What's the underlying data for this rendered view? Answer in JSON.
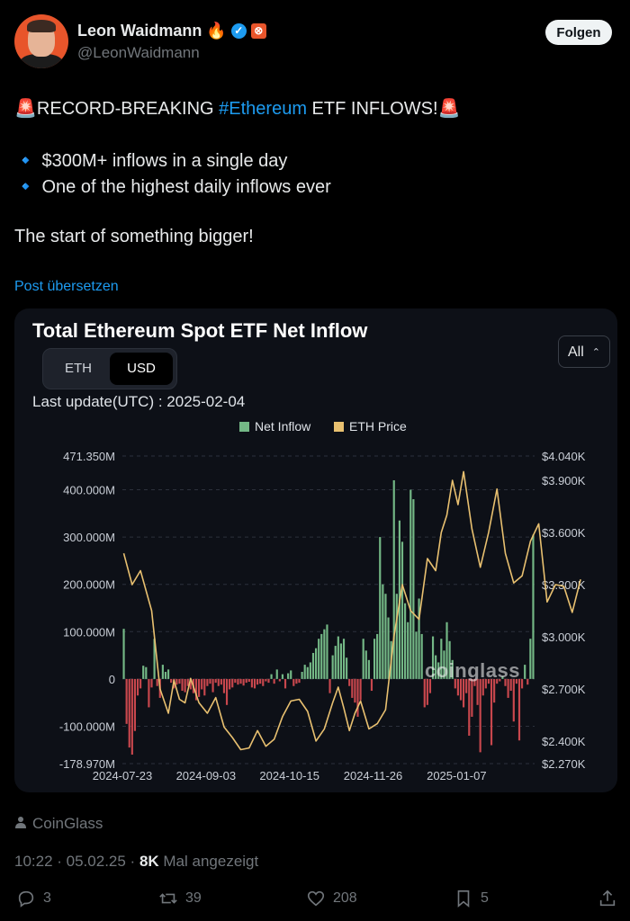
{
  "author": {
    "name": "Leon Waidmann",
    "name_emoji": "🔥",
    "handle": "@LeonWaidmann"
  },
  "follow_label": "Folgen",
  "tweet": {
    "line1_pre": "RECORD-BREAKING ",
    "line1_tag": "#Ethereum",
    "line1_post": " ETF INFLOWS!",
    "siren": "🚨",
    "bullet": "🔹",
    "bullet1": "$300M+ inflows in a single day",
    "bullet2": "One of the highest daily inflows ever",
    "line4": "The start of something bigger!"
  },
  "translate_label": "Post übersetzen",
  "card": {
    "title": "Total Ethereum Spot ETF Net Inflow",
    "toggle": [
      "ETH",
      "USD"
    ],
    "selected_toggle": "USD",
    "range_select": "All",
    "last_update": "Last update(UTC) : 2025-02-04",
    "watermark": "coinglass"
  },
  "chart_data": {
    "type": "bar",
    "title": "Total Ethereum Spot ETF Net Inflow",
    "legend": [
      "Net Inflow",
      "ETH Price"
    ],
    "legend_position": "top-center",
    "colors": {
      "positive": "#74b886",
      "negative": "#c8474d",
      "price": "#e8c070",
      "grid": "#2c313c"
    },
    "x_ticks": [
      "2024-07-23",
      "2024-09-03",
      "2024-10-15",
      "2024-11-26",
      "2025-01-07"
    ],
    "y_left_ticks": [
      "471.350M",
      "400.000M",
      "300.000M",
      "200.000M",
      "100.000M",
      "0",
      "-100.000M",
      "-178.970M"
    ],
    "y_left_range": [
      -178.97,
      471.35
    ],
    "y_right_ticks": [
      "$4.040K",
      "$3.900K",
      "$3.600K",
      "$3.300K",
      "$3.000K",
      "$2.700K",
      "$2.400K",
      "$2.270K"
    ],
    "y_right_range": [
      2270,
      4040
    ],
    "grid": true,
    "series": [
      {
        "name": "Net Inflow",
        "unit": "USD millions",
        "values": [
          106,
          -95,
          -145,
          -160,
          -110,
          -35,
          -20,
          28,
          25,
          -60,
          -18,
          85,
          -15,
          -40,
          30,
          15,
          20,
          -8,
          -20,
          -12,
          -10,
          -25,
          -28,
          -15,
          -22,
          -30,
          -45,
          -38,
          -22,
          -35,
          -15,
          -10,
          -28,
          -8,
          -15,
          -12,
          -30,
          -55,
          -22,
          -18,
          -8,
          -12,
          -10,
          -14,
          -8,
          -6,
          -18,
          -20,
          -12,
          -10,
          -15,
          -5,
          -8,
          10,
          -10,
          20,
          -5,
          10,
          -20,
          12,
          18,
          -15,
          -10,
          -8,
          15,
          30,
          25,
          35,
          55,
          65,
          85,
          95,
          105,
          115,
          -30,
          50,
          70,
          90,
          75,
          85,
          45,
          -15,
          -40,
          -50,
          -80,
          -45,
          85,
          60,
          40,
          -25,
          85,
          95,
          300,
          200,
          180,
          130,
          80,
          420,
          180,
          335,
          290,
          160,
          120,
          400,
          380,
          100,
          170,
          95,
          -60,
          -55,
          -30,
          90,
          50,
          35,
          85,
          60,
          120,
          80,
          40,
          -20,
          -35,
          -45,
          -60,
          -30,
          -120,
          -80,
          -15,
          -55,
          -155,
          -35,
          -20,
          -10,
          -140,
          -50,
          -10,
          -5,
          5,
          -15,
          -40,
          -25,
          -90,
          -10,
          -130,
          -20,
          30,
          -12,
          85,
          305
        ]
      },
      {
        "name": "ETH Price",
        "unit": "USD",
        "points": [
          [
            0,
            3480
          ],
          [
            3,
            3300
          ],
          [
            6,
            3380
          ],
          [
            10,
            3150
          ],
          [
            13,
            2700
          ],
          [
            16,
            2560
          ],
          [
            18,
            2750
          ],
          [
            20,
            2640
          ],
          [
            22,
            2620
          ],
          [
            24,
            2760
          ],
          [
            27,
            2620
          ],
          [
            30,
            2560
          ],
          [
            33,
            2650
          ],
          [
            36,
            2480
          ],
          [
            39,
            2420
          ],
          [
            42,
            2350
          ],
          [
            45,
            2360
          ],
          [
            48,
            2460
          ],
          [
            51,
            2370
          ],
          [
            54,
            2410
          ],
          [
            57,
            2540
          ],
          [
            60,
            2630
          ],
          [
            63,
            2640
          ],
          [
            66,
            2570
          ],
          [
            69,
            2400
          ],
          [
            72,
            2470
          ],
          [
            75,
            2620
          ],
          [
            77,
            2710
          ],
          [
            79,
            2590
          ],
          [
            81,
            2460
          ],
          [
            83,
            2560
          ],
          [
            85,
            2630
          ],
          [
            88,
            2470
          ],
          [
            91,
            2500
          ],
          [
            94,
            2580
          ],
          [
            97,
            3000
          ],
          [
            100,
            3300
          ],
          [
            103,
            3150
          ],
          [
            106,
            3100
          ],
          [
            109,
            3450
          ],
          [
            112,
            3380
          ],
          [
            114,
            3600
          ],
          [
            116,
            3700
          ],
          [
            118,
            3900
          ],
          [
            120,
            3760
          ],
          [
            122,
            3950
          ],
          [
            125,
            3620
          ],
          [
            128,
            3400
          ],
          [
            131,
            3600
          ],
          [
            134,
            3850
          ],
          [
            137,
            3480
          ],
          [
            140,
            3310
          ],
          [
            143,
            3350
          ],
          [
            146,
            3550
          ],
          [
            149,
            3650
          ],
          [
            152,
            3200
          ],
          [
            155,
            3300
          ],
          [
            158,
            3290
          ],
          [
            161,
            3140
          ],
          [
            164,
            3330
          ]
        ]
      }
    ]
  },
  "source_label": "CoinGlass",
  "meta": {
    "time": "10:22 · 05.02.25 · ",
    "views_count": "8K",
    "views_label": " Mal angezeigt"
  },
  "actions": {
    "replies": "3",
    "reposts": "39",
    "likes": "208",
    "bookmarks": "5"
  }
}
